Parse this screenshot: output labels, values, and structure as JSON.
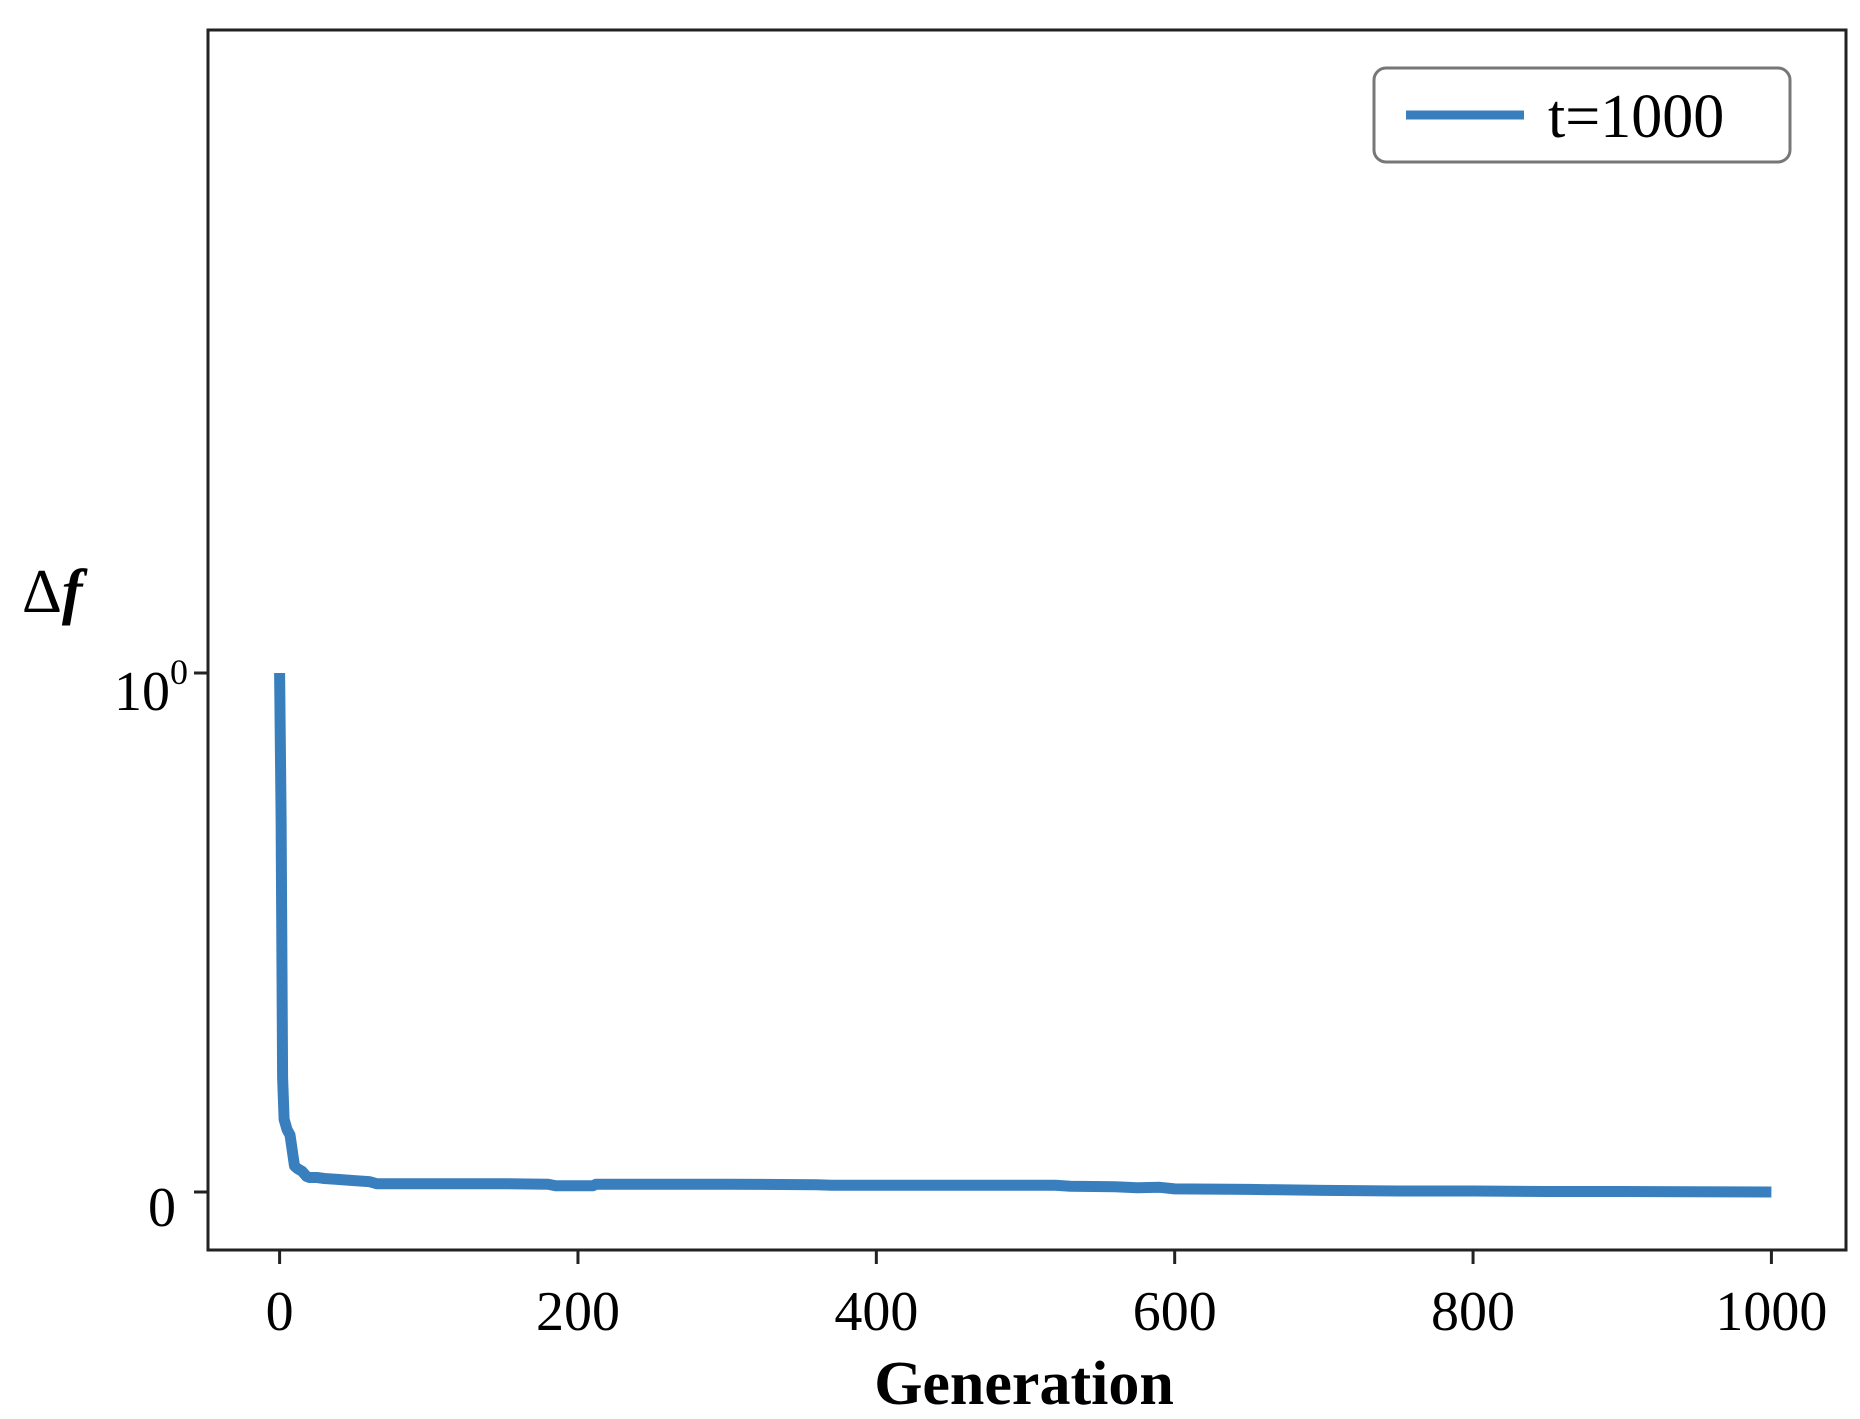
{
  "chart_data": {
    "type": "line",
    "title": "",
    "xlabel": "Generation",
    "ylabel": {
      "delta": "Δ",
      "symbol": "f"
    },
    "xlim": [
      -48,
      1050
    ],
    "x_ticks": [
      0,
      200,
      400,
      600,
      800,
      1000
    ],
    "x_tick_labels": [
      "0",
      "200",
      "400",
      "600",
      "800",
      "1000"
    ],
    "y_ticks": [
      {
        "base": "10",
        "exp": "0"
      },
      {
        "base": "0",
        "exp": ""
      }
    ],
    "grid": false,
    "legend_position": "top-right",
    "series": [
      {
        "name": "t=1000",
        "color": "#3a7fbd",
        "points": [
          [
            0,
            1.0
          ],
          [
            1,
            0.72
          ],
          [
            2,
            0.22
          ],
          [
            3,
            0.14
          ],
          [
            5,
            0.12
          ],
          [
            7,
            0.11
          ],
          [
            8,
            0.09
          ],
          [
            10,
            0.05
          ],
          [
            12,
            0.045
          ],
          [
            15,
            0.04
          ],
          [
            18,
            0.03
          ],
          [
            20,
            0.028
          ],
          [
            25,
            0.028
          ],
          [
            30,
            0.026
          ],
          [
            40,
            0.024
          ],
          [
            50,
            0.022
          ],
          [
            60,
            0.02
          ],
          [
            65,
            0.016
          ],
          [
            80,
            0.016
          ],
          [
            100,
            0.016
          ],
          [
            150,
            0.016
          ],
          [
            180,
            0.015
          ],
          [
            185,
            0.012
          ],
          [
            210,
            0.012
          ],
          [
            212,
            0.015
          ],
          [
            300,
            0.015
          ],
          [
            360,
            0.014
          ],
          [
            370,
            0.013
          ],
          [
            450,
            0.013
          ],
          [
            520,
            0.013
          ],
          [
            530,
            0.011
          ],
          [
            560,
            0.01
          ],
          [
            575,
            0.008
          ],
          [
            590,
            0.009
          ],
          [
            600,
            0.006
          ],
          [
            650,
            0.005
          ],
          [
            700,
            0.003
          ],
          [
            750,
            0.002
          ],
          [
            800,
            0.002
          ],
          [
            850,
            0.001
          ],
          [
            900,
            0.001
          ],
          [
            1000,
            0.0
          ]
        ]
      }
    ]
  }
}
